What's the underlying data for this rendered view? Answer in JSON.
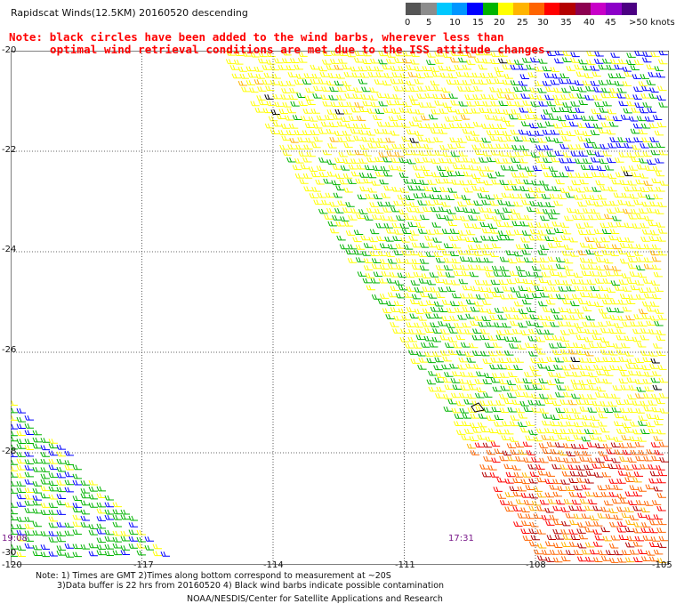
{
  "title": "Rapidscat Winds(12.5KM) 20160520 descending",
  "note": {
    "line1": "Note: black circles have been added to the wind barbs, wherever less than",
    "line2": "optimal wind retrieval conditions are met due to the ISS attitude changes."
  },
  "legend": {
    "unit": "knots",
    "labels": [
      "0",
      "5",
      "10",
      "15",
      "20",
      "25",
      "30",
      "35",
      "40",
      "45",
      ">50 knots"
    ],
    "colors": [
      "#555555",
      "#8c8c8c",
      "#00c8ff",
      "#0096ff",
      "#0000ff",
      "#00b400",
      "#ffff00",
      "#ffb400",
      "#ff6400",
      "#ff0000",
      "#b40000",
      "#8c0050",
      "#c800c8",
      "#8c00c8",
      "#4b0082"
    ]
  },
  "map": {
    "lat_labels": [
      "-20",
      "-22",
      "-24",
      "-26",
      "-28",
      "-30"
    ],
    "lon_labels": [
      "-120",
      "-117",
      "-114",
      "-111",
      "-108",
      "-105"
    ],
    "lat_range": [
      -30,
      -20
    ],
    "lon_range": [
      -120,
      -105
    ],
    "grid": "dotted",
    "pass_times": [
      "19:08",
      "17:31"
    ]
  },
  "footer": {
    "line1": "Note: 1) Times are GMT 2)Times along bottom correspond to measurement at ~20S",
    "line2": "3)Data buffer is 22 hrs from 20160520 4) Black wind barbs indicate possible contamination",
    "credit": "NOAA/NESDIS/Center for Satellite Applications and Research"
  }
}
